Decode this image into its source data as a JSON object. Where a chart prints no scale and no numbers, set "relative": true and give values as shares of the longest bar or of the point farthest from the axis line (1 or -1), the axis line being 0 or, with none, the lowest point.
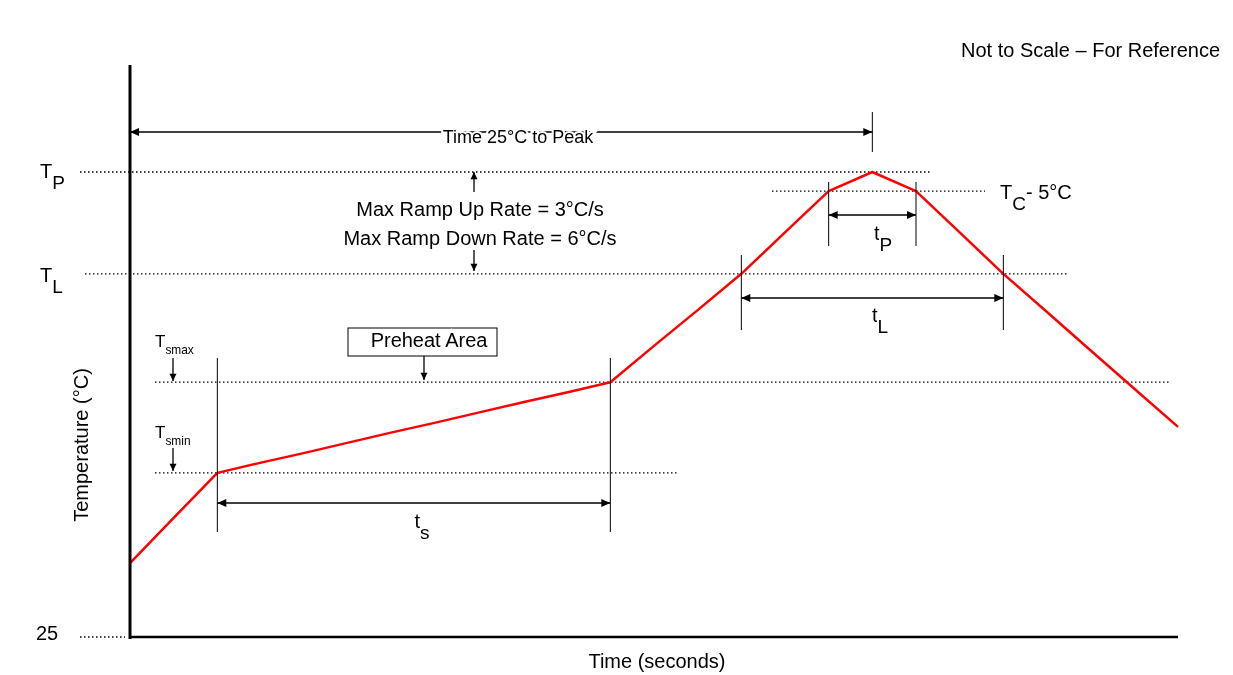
{
  "chart_data": {
    "type": "line",
    "relative": true,
    "xlabel": "Time (seconds)",
    "ylabel": "Temperature (°C)",
    "categories": [
      null,
      null,
      null,
      null,
      null,
      null,
      null,
      null,
      null,
      null,
      null,
      null,
      null,
      null,
      null,
      null,
      null,
      null,
      null,
      null,
      null,
      null,
      null,
      null,
      null
    ],
    "series": [
      {
        "color": "#ff0000",
        "values": [
          0.159,
          0.256,
          0.353,
          0.375,
          0.396,
          0.418,
          0.44,
          0.461,
          0.483,
          0.505,
          0.526,
          0.548,
          0.626,
          0.703,
          0.781,
          0.87,
          0.959,
          1,
          0.959,
          0.87,
          0.781,
          0.699,
          0.616,
          0.534,
          0.452
        ]
      }
    ],
    "ref_lines": [
      {
        "axis": "y",
        "value": 1,
        "label": "T$_{P}$",
        "color": "#000000",
        "line_style": "dotted"
      },
      {
        "axis": "y",
        "value": 0.959,
        "label": "T$_{C}$- 5°C",
        "color": "#000000",
        "line_style": "dotted"
      },
      {
        "axis": "y",
        "value": 0.781,
        "label": "T$_{L}$",
        "color": "#000000",
        "line_style": "dotted"
      },
      {
        "axis": "y",
        "value": 0.548,
        "label": "T$_{smax}$",
        "color": "#000000",
        "line_style": "dotted"
      },
      {
        "axis": "y",
        "value": 0.353,
        "label": "T$_{smin}$",
        "color": "#000000",
        "line_style": "dotted"
      }
    ],
    "annotations": [
      "Not to Scale – For Reference",
      "Time 25°C to Peak",
      "Max Ramp Up Rate = 3°C/s",
      "Max Ramp Down Rate = 6°C/s",
      "Preheat Area",
      "t$_{s}$",
      "t$_{L}$",
      "t$_{P}$",
      "25"
    ]
  }
}
